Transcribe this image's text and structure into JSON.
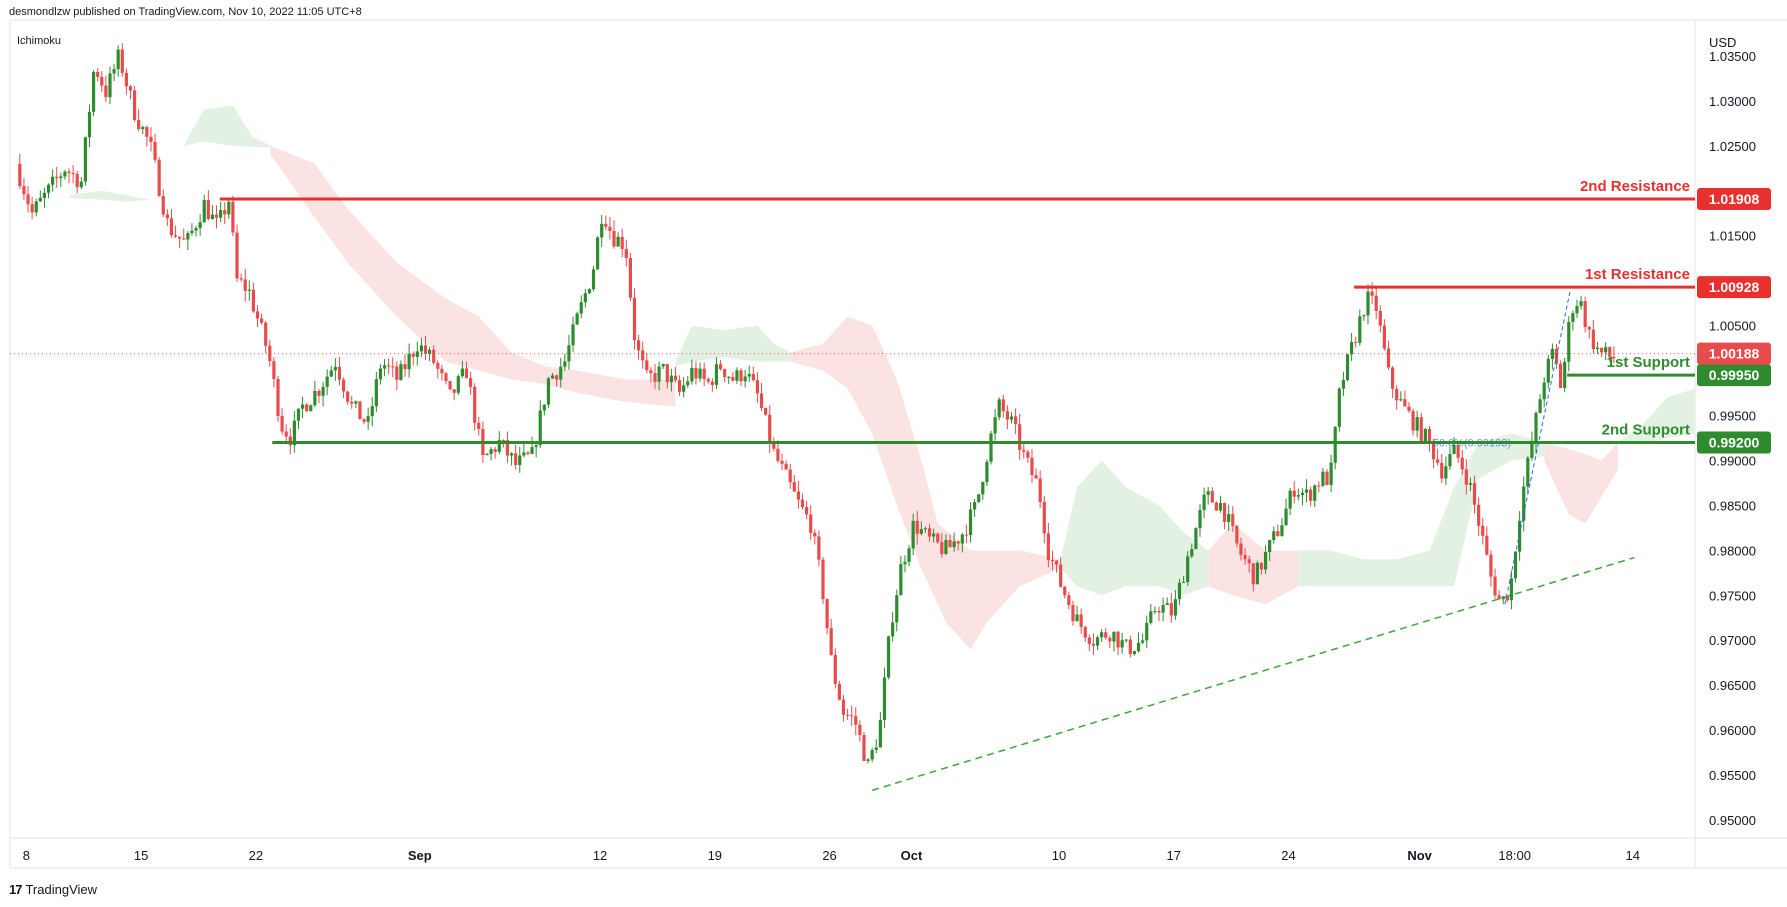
{
  "header": {
    "publisher": "desmondlzw published on TradingView.com, Nov 10, 2022 11:05 UTC+8",
    "indicator": "Ichimoku",
    "currency": "USD"
  },
  "footer": {
    "brand": "TradingView",
    "logo_text": "17"
  },
  "colors": {
    "up": "#2e8b2e",
    "down": "#e84b4b",
    "resistance": "#e8302f",
    "support": "#2e8b2e",
    "cloud_up": "#e3f1e3",
    "cloud_down": "#fbe3e3",
    "trendline": "#3aa83a",
    "fib": "#2962ff"
  },
  "chart_data": {
    "type": "candlestick",
    "ylim": [
      0.948,
      1.039
    ],
    "y_ticks": [
      0.95,
      0.955,
      0.96,
      0.965,
      0.97,
      0.975,
      0.98,
      0.985,
      0.99,
      0.995,
      1.005,
      1.015,
      1.025,
      1.03,
      1.035
    ],
    "y_tick_labels": [
      "0.95000",
      "0.95500",
      "0.96000",
      "0.96500",
      "0.97000",
      "0.97500",
      "0.98000",
      "0.98500",
      "0.99000",
      "0.99500",
      "1.00500",
      "1.01500",
      "1.02500",
      "1.03000",
      "1.03500"
    ],
    "x_ticks": [
      {
        "label": "8",
        "t": 0.4
      },
      {
        "label": "15",
        "t": 7.4
      },
      {
        "label": "22",
        "t": 14.4
      },
      {
        "label": "Sep",
        "t": 24.4
      },
      {
        "label": "12",
        "t": 35.4
      },
      {
        "label": "19",
        "t": 42.4
      },
      {
        "label": "26",
        "t": 49.4
      },
      {
        "label": "Oct",
        "t": 54.4
      },
      {
        "label": "10",
        "t": 63.4
      },
      {
        "label": "17",
        "t": 70.4
      },
      {
        "label": "24",
        "t": 77.4
      },
      {
        "label": "Nov",
        "t": 85.4
      },
      {
        "label": "18:00",
        "t": 91.2
      },
      {
        "label": "14",
        "t": 98.4
      }
    ],
    "t_range": [
      -0.6,
      102.2
    ],
    "path_points": [
      [
        0,
        1.023
      ],
      [
        1,
        1.0175
      ],
      [
        2,
        1.02
      ],
      [
        3,
        1.0225
      ],
      [
        4,
        1.021
      ],
      [
        4.8,
        1.034
      ],
      [
        5.5,
        1.031
      ],
      [
        6.3,
        1.035
      ],
      [
        7.2,
        1.029
      ],
      [
        8.2,
        1.025
      ],
      [
        9.3,
        1.016
      ],
      [
        10.4,
        1.014
      ],
      [
        11.5,
        1.0185
      ],
      [
        12.3,
        1.016
      ],
      [
        13.0,
        1.019
      ],
      [
        13.5,
        1.01
      ],
      [
        14.2,
        1.009
      ],
      [
        15.4,
        1.002
      ],
      [
        16.2,
        0.994
      ],
      [
        16.8,
        0.9925
      ],
      [
        17.5,
        0.996
      ],
      [
        18.5,
        0.998
      ],
      [
        19.5,
        1.001
      ],
      [
        20.5,
        0.996
      ],
      [
        21.5,
        0.994
      ],
      [
        22.3,
        1.001
      ],
      [
        23.3,
        0.999
      ],
      [
        24.5,
        1.003
      ],
      [
        25.5,
        1.001
      ],
      [
        26.5,
        0.997
      ],
      [
        27.5,
        1.0
      ],
      [
        28.5,
        0.99
      ],
      [
        29.5,
        0.992
      ],
      [
        30.5,
        0.9895
      ],
      [
        31.5,
        0.9905
      ],
      [
        32.5,
        0.999
      ],
      [
        33.5,
        1.001
      ],
      [
        34.3,
        1.006
      ],
      [
        35.2,
        1.011
      ],
      [
        35.8,
        1.018
      ],
      [
        36.4,
        1.015
      ],
      [
        37.2,
        1.014
      ],
      [
        37.8,
        1.003
      ],
      [
        38.5,
        0.999
      ],
      [
        39.5,
        1.0
      ],
      [
        40.5,
        0.9975
      ],
      [
        41.3,
        1.0
      ],
      [
        42.2,
        0.9985
      ],
      [
        43.0,
        1.0005
      ],
      [
        43.8,
        0.999
      ],
      [
        44.5,
        1.0
      ],
      [
        45.3,
        0.997
      ],
      [
        46.2,
        0.991
      ],
      [
        47.0,
        0.988
      ],
      [
        47.8,
        0.985
      ],
      [
        48.5,
        0.983
      ],
      [
        49.2,
        0.976
      ],
      [
        49.8,
        0.967
      ],
      [
        50.5,
        0.962
      ],
      [
        51.2,
        0.961
      ],
      [
        52.0,
        0.956
      ],
      [
        52.7,
        0.96
      ],
      [
        53.4,
        0.972
      ],
      [
        54.0,
        0.978
      ],
      [
        54.8,
        0.983
      ],
      [
        55.8,
        0.981
      ],
      [
        56.8,
        0.98
      ],
      [
        57.8,
        0.982
      ],
      [
        58.6,
        0.985
      ],
      [
        59.4,
        0.992
      ],
      [
        60.0,
        0.996
      ],
      [
        60.8,
        0.994
      ],
      [
        61.6,
        0.99
      ],
      [
        62.4,
        0.987
      ],
      [
        63.0,
        0.98
      ],
      [
        63.8,
        0.976
      ],
      [
        64.8,
        0.972
      ],
      [
        65.8,
        0.97
      ],
      [
        66.8,
        0.971
      ],
      [
        67.8,
        0.969
      ],
      [
        68.8,
        0.97
      ],
      [
        69.6,
        0.974
      ],
      [
        70.6,
        0.973
      ],
      [
        71.6,
        0.98
      ],
      [
        72.6,
        0.986
      ],
      [
        73.6,
        0.985
      ],
      [
        74.6,
        0.98
      ],
      [
        75.6,
        0.977
      ],
      [
        76.4,
        0.98
      ],
      [
        77.2,
        0.983
      ],
      [
        78.0,
        0.987
      ],
      [
        78.8,
        0.986
      ],
      [
        79.6,
        0.988
      ],
      [
        80.2,
        0.988
      ],
      [
        80.8,
        0.998
      ],
      [
        81.6,
        1.003
      ],
      [
        82.4,
        1.008
      ],
      [
        83.0,
        1.007
      ],
      [
        83.8,
        0.999
      ],
      [
        84.6,
        0.996
      ],
      [
        85.4,
        0.994
      ],
      [
        86.2,
        0.992
      ],
      [
        87.0,
        0.989
      ],
      [
        87.8,
        0.991
      ],
      [
        88.6,
        0.988
      ],
      [
        89.4,
        0.982
      ],
      [
        90.0,
        0.977
      ],
      [
        90.6,
        0.974
      ],
      [
        91.2,
        0.976
      ],
      [
        91.8,
        0.985
      ],
      [
        92.6,
        0.993
      ],
      [
        93.2,
        0.999
      ],
      [
        93.8,
        1.002
      ],
      [
        94.3,
        0.998
      ],
      [
        94.9,
        1.007
      ],
      [
        95.4,
        1.008
      ],
      [
        96.0,
        1.004
      ],
      [
        96.6,
        1.002
      ],
      [
        97.3,
        1.0015
      ]
    ],
    "cloud_segments": [
      {
        "trend": "up",
        "top": [
          [
            3.0,
            1.0195
          ],
          [
            5.0,
            1.02
          ],
          [
            6.5,
            1.0195
          ],
          [
            8.0,
            1.019
          ]
        ],
        "bottom": [
          [
            8.0,
            1.019
          ],
          [
            6.5,
            1.0188
          ],
          [
            5.0,
            1.019
          ],
          [
            3.0,
            1.0192
          ]
        ]
      },
      {
        "trend": "up",
        "top": [
          [
            10.0,
            1.025
          ],
          [
            11.2,
            1.029
          ],
          [
            13.0,
            1.0295
          ],
          [
            14.2,
            1.026
          ],
          [
            15.3,
            1.025
          ]
        ],
        "bottom": [
          [
            15.3,
            1.0248
          ],
          [
            13.0,
            1.025
          ],
          [
            11.2,
            1.0255
          ],
          [
            10.0,
            1.025
          ]
        ]
      },
      {
        "trend": "down",
        "top": [
          [
            15.3,
            1.025
          ],
          [
            18.0,
            1.023
          ],
          [
            20.0,
            1.018
          ],
          [
            23.0,
            1.012
          ],
          [
            26.0,
            1.008
          ],
          [
            28.0,
            1.006
          ],
          [
            30.0,
            1.002
          ],
          [
            32.0,
            1.0005
          ],
          [
            34.0,
            1.0
          ],
          [
            37.0,
            0.999
          ],
          [
            40.0,
            0.999
          ]
        ],
        "bottom": [
          [
            40.0,
            0.996
          ],
          [
            37.0,
            0.9965
          ],
          [
            34.0,
            0.9975
          ],
          [
            32.0,
            0.9985
          ],
          [
            30.0,
            0.999
          ],
          [
            28.0,
            1.0
          ],
          [
            26.0,
            1.001
          ],
          [
            23.0,
            1.006
          ],
          [
            20.0,
            1.012
          ],
          [
            18.0,
            1.017
          ],
          [
            15.3,
            1.024
          ]
        ]
      },
      {
        "trend": "up",
        "top": [
          [
            40.0,
            1.001
          ],
          [
            41.0,
            1.005
          ],
          [
            43.0,
            1.0045
          ],
          [
            45.0,
            1.005
          ],
          [
            46.0,
            1.003
          ],
          [
            47.0,
            1.002
          ]
        ],
        "bottom": [
          [
            47.0,
            1.001
          ],
          [
            45.0,
            1.001
          ],
          [
            43.0,
            1.0015
          ],
          [
            41.0,
            1.001
          ],
          [
            40.0,
            1.0005
          ]
        ]
      },
      {
        "trend": "down",
        "top": [
          [
            47.0,
            1.002
          ],
          [
            49.0,
            1.003
          ],
          [
            50.5,
            1.006
          ],
          [
            52.0,
            1.005
          ],
          [
            53.5,
            0.999
          ],
          [
            55.0,
            0.99
          ],
          [
            56.0,
            0.983
          ],
          [
            58.0,
            0.98
          ],
          [
            61.0,
            0.98
          ],
          [
            63.5,
            0.979
          ]
        ],
        "bottom": [
          [
            63.5,
            0.978
          ],
          [
            61.0,
            0.976
          ],
          [
            59.0,
            0.972
          ],
          [
            58.0,
            0.969
          ],
          [
            56.5,
            0.972
          ],
          [
            55.0,
            0.978
          ],
          [
            53.5,
            0.985
          ],
          [
            52.0,
            0.993
          ],
          [
            50.5,
            0.998
          ],
          [
            49.0,
            1.0
          ],
          [
            47.0,
            1.001
          ]
        ]
      },
      {
        "trend": "up",
        "top": [
          [
            63.5,
            0.979
          ],
          [
            64.5,
            0.987
          ],
          [
            66.0,
            0.99
          ],
          [
            67.5,
            0.987
          ],
          [
            69.5,
            0.985
          ],
          [
            71.0,
            0.982
          ],
          [
            72.5,
            0.98
          ]
        ],
        "bottom": [
          [
            72.5,
            0.976
          ],
          [
            71.0,
            0.975
          ],
          [
            69.5,
            0.976
          ],
          [
            67.5,
            0.976
          ],
          [
            66.0,
            0.975
          ],
          [
            64.5,
            0.976
          ],
          [
            63.5,
            0.978
          ]
        ]
      },
      {
        "trend": "down",
        "top": [
          [
            72.5,
            0.98
          ],
          [
            74.0,
            0.983
          ],
          [
            76.0,
            0.98
          ],
          [
            78.0,
            0.98
          ]
        ],
        "bottom": [
          [
            78.0,
            0.976
          ],
          [
            76.0,
            0.974
          ],
          [
            74.0,
            0.975
          ],
          [
            72.5,
            0.976
          ]
        ]
      },
      {
        "trend": "up",
        "top": [
          [
            78.0,
            0.98
          ],
          [
            80.0,
            0.98
          ],
          [
            82.0,
            0.979
          ],
          [
            84.0,
            0.979
          ],
          [
            86.0,
            0.98
          ],
          [
            87.5,
            0.987
          ],
          [
            89.0,
            0.992
          ],
          [
            91.0,
            0.993
          ],
          [
            93.0,
            0.992
          ]
        ],
        "bottom": [
          [
            93.0,
            0.9905
          ],
          [
            91.0,
            0.99
          ],
          [
            89.0,
            0.988
          ],
          [
            87.5,
            0.976
          ],
          [
            86.0,
            0.976
          ],
          [
            84.0,
            0.976
          ],
          [
            82.0,
            0.976
          ],
          [
            80.0,
            0.976
          ],
          [
            78.0,
            0.976
          ]
        ]
      },
      {
        "trend": "down",
        "top": [
          [
            93.0,
            0.992
          ],
          [
            95.0,
            0.991
          ],
          [
            96.5,
            0.99
          ],
          [
            97.5,
            0.992
          ]
        ],
        "bottom": [
          [
            97.5,
            0.989
          ],
          [
            96.5,
            0.986
          ],
          [
            95.5,
            0.983
          ],
          [
            94.5,
            0.984
          ],
          [
            93.0,
            0.99
          ]
        ]
      },
      {
        "trend": "up",
        "top": [
          [
            97.5,
            0.992
          ],
          [
            99.0,
            0.994
          ],
          [
            100.5,
            0.997
          ],
          [
            102.2,
            0.998
          ]
        ],
        "bottom": [
          [
            102.2,
            0.993
          ],
          [
            100.5,
            0.9925
          ],
          [
            99.0,
            0.992
          ],
          [
            97.5,
            0.992
          ]
        ]
      }
    ],
    "levels": [
      {
        "name": "2nd Resistance",
        "value": 1.01908,
        "label": "1.01908",
        "type": "resistance",
        "t_start": 12.2
      },
      {
        "name": "1st Resistance",
        "value": 1.00928,
        "label": "1.00928",
        "type": "resistance",
        "t_start": 81.4
      },
      {
        "name": "1st Support",
        "value": 0.9995,
        "label": "0.99950",
        "type": "support",
        "t_start": 94.4
      },
      {
        "name": "2nd Support",
        "value": 0.992,
        "label": "0.99200",
        "type": "support",
        "t_start": 15.4
      }
    ],
    "current_price": {
      "value": 1.00188,
      "label": "1.00188"
    },
    "trendline": {
      "t0": 52.0,
      "v0": 0.9533,
      "t1": 98.5,
      "v1": 0.9792
    },
    "fib_line": {
      "t0": 90.6,
      "v0": 0.974,
      "t1": 94.6,
      "v1": 1.009
    },
    "fib_label": {
      "text": "50.0%(0.99193)",
      "t": 86.2,
      "v": 0.992
    }
  }
}
